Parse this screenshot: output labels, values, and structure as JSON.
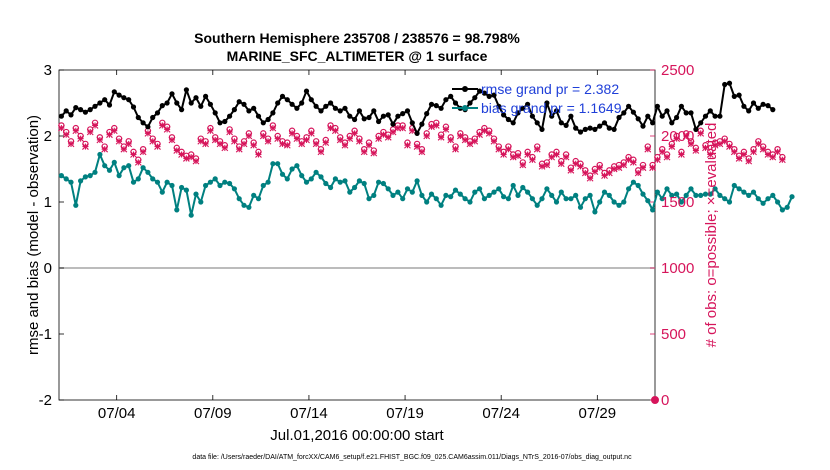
{
  "chart_data": {
    "type": "line",
    "title": "Southern Hemisphere 235708 / 238576 = 98.798%",
    "subtitle": "MARINE_SFC_ALTIMETER @ 1 surface",
    "xlabel": "Jul.01,2016 00:00:00 start",
    "ylabel_left": "rmse and bias (model - observation)",
    "ylabel_right": "# of obs: o=possible; ×=evaluated",
    "footer": "data file: /Users/raeder/DAI/ATM_forcXX/CAM6_setup/f.e21.FHIST_BGC.f09_025.CAM6assim.011/Diags_NTrS_2016-07/obs_diag_output.nc",
    "x_range_days": [
      1,
      32
    ],
    "ylim_left": [
      -2,
      3
    ],
    "ylim_right": [
      0,
      2500
    ],
    "x_ticks": [
      {
        "day": 4,
        "label": "07/04"
      },
      {
        "day": 9,
        "label": "07/09"
      },
      {
        "day": 14,
        "label": "07/14"
      },
      {
        "day": 19,
        "label": "07/19"
      },
      {
        "day": 24,
        "label": "07/24"
      },
      {
        "day": 29,
        "label": "07/29"
      }
    ],
    "y_ticks_left": [
      {
        "value": 3,
        "label": "3"
      },
      {
        "value": 2,
        "label": "2"
      },
      {
        "value": 1,
        "label": "1"
      },
      {
        "value": 0,
        "label": "0"
      },
      {
        "value": -1,
        "label": "-1"
      },
      {
        "value": -2,
        "label": "-2"
      }
    ],
    "y_ticks_right": [
      {
        "value": 2500,
        "label": "2500"
      },
      {
        "value": 2000,
        "label": "2000"
      },
      {
        "value": 1500,
        "label": "1500"
      },
      {
        "value": 1000,
        "label": "1000"
      },
      {
        "value": 500,
        "label": "500"
      },
      {
        "value": 0,
        "label": "0"
      }
    ],
    "zero_line": 0,
    "colors": {
      "rmse": "#000000",
      "bias": "#008080",
      "obs": "#d6155b",
      "zero": "#a6a6a6",
      "legend_text": "#1f3fd8"
    },
    "legend": [
      {
        "name": "rmse grand pr = 2.382",
        "color": "#000000"
      },
      {
        "name": "bias grand pr = 1.1649",
        "color": "#008080"
      }
    ],
    "series": [
      {
        "name": "rmse",
        "axis": "left",
        "x_start": 1.125,
        "x_step": 0.25,
        "values": [
          2.3,
          2.38,
          2.32,
          2.43,
          2.4,
          2.36,
          2.4,
          2.45,
          2.5,
          2.55,
          2.47,
          2.67,
          2.62,
          2.58,
          2.55,
          2.44,
          2.28,
          2.2,
          2.14,
          2.28,
          2.35,
          2.46,
          2.5,
          2.64,
          2.5,
          2.4,
          2.7,
          2.5,
          2.58,
          2.45,
          2.6,
          2.48,
          2.35,
          2.2,
          2.22,
          2.3,
          2.4,
          2.52,
          2.48,
          2.38,
          2.42,
          2.3,
          2.2,
          2.25,
          2.35,
          2.5,
          2.6,
          2.55,
          2.48,
          2.42,
          2.5,
          2.68,
          2.55,
          2.45,
          2.38,
          2.45,
          2.5,
          2.42,
          2.38,
          2.42,
          2.3,
          2.25,
          2.38,
          2.26,
          2.28,
          2.38,
          2.22,
          2.3,
          2.32,
          2.18,
          2.3,
          2.34,
          2.38,
          2.2,
          2.04,
          2.18,
          2.34,
          2.48,
          2.46,
          2.42,
          2.55,
          2.6,
          2.5,
          2.42,
          2.4,
          2.5,
          2.58,
          2.68,
          2.65,
          2.6,
          2.62,
          2.45,
          2.32,
          2.25,
          2.2,
          2.35,
          2.42,
          2.48,
          2.3,
          2.2,
          2.1,
          2.5,
          2.3,
          2.38,
          2.2,
          2.16,
          2.3,
          2.12,
          2.06,
          2.1,
          2.12,
          2.1,
          2.15,
          2.2,
          2.12,
          2.1,
          2.28,
          2.35,
          2.45,
          2.36,
          2.26,
          2.15,
          2.3,
          2.2,
          2.45,
          2.3,
          2.38,
          2.2,
          2.28,
          2.45,
          2.35,
          2.35,
          2.1,
          2.2,
          2.3,
          2.38,
          2.3,
          2.3,
          2.78,
          2.8,
          2.6,
          2.62,
          2.45,
          2.38,
          2.5,
          2.42,
          2.48,
          2.46,
          2.4
        ]
      },
      {
        "name": "bias",
        "axis": "left",
        "x_start": 1.125,
        "x_step": 0.25,
        "values": [
          1.4,
          1.35,
          1.3,
          0.95,
          1.32,
          1.38,
          1.4,
          1.45,
          1.72,
          1.55,
          1.48,
          1.6,
          1.4,
          1.52,
          1.55,
          1.3,
          1.35,
          1.52,
          1.45,
          1.35,
          1.3,
          1.15,
          1.3,
          1.25,
          0.88,
          1.22,
          1.18,
          0.8,
          1.12,
          1.0,
          1.25,
          1.3,
          1.35,
          1.25,
          1.3,
          1.28,
          1.2,
          1.05,
          0.95,
          0.92,
          1.1,
          1.05,
          1.25,
          1.3,
          1.58,
          1.58,
          1.42,
          1.35,
          1.5,
          1.55,
          1.4,
          1.3,
          1.35,
          1.45,
          1.38,
          1.28,
          1.22,
          1.35,
          1.3,
          1.32,
          1.15,
          1.22,
          1.32,
          1.28,
          1.05,
          1.1,
          1.3,
          1.28,
          1.2,
          1.1,
          1.15,
          1.05,
          1.2,
          1.15,
          1.32,
          1.1,
          1.0,
          1.12,
          1.05,
          0.95,
          1.1,
          1.08,
          1.18,
          1.12,
          1.05,
          1.0,
          1.15,
          1.2,
          1.05,
          1.1,
          1.15,
          1.2,
          1.08,
          1.05,
          1.25,
          1.1,
          1.22,
          1.15,
          1.05,
          0.95,
          1.05,
          1.2,
          1.1,
          1.0,
          1.15,
          1.05,
          1.05,
          1.1,
          0.92,
          1.05,
          1.1,
          0.85,
          1.0,
          1.15,
          1.1,
          1.0,
          0.95,
          1.0,
          1.2,
          1.3,
          1.25,
          1.12,
          1.02,
          0.88,
          1.15,
          1.05,
          1.2,
          1.1,
          1.12,
          1.0,
          1.1,
          1.2,
          1.1,
          1.1,
          1.12,
          1.12,
          1.2,
          1.1,
          1.05,
          1.0,
          1.25,
          1.2,
          1.15,
          1.1,
          1.15,
          1.05,
          0.98,
          1.05,
          1.1,
          1.0,
          0.88,
          0.92,
          1.08
        ]
      },
      {
        "name": "obs possible (o)",
        "axis": "right",
        "x_start": 1.125,
        "x_step": 0.25,
        "values": [
          2080,
          2030,
          1960,
          2060,
          2000,
          1940,
          2050,
          2100,
          1990,
          1920,
          2030,
          2060,
          1980,
          1920,
          1960,
          1880,
          1820,
          1900,
          2040,
          1980,
          1940,
          2100,
          2070,
          1990,
          1910,
          1880,
          1850,
          1860,
          1830,
          1980,
          1960,
          2060,
          1990,
          1960,
          1930,
          2050,
          1980,
          1920,
          1960,
          2020,
          1950,
          1880,
          2020,
          1980,
          2080,
          2000,
          1960,
          1950,
          2040,
          2000,
          1960,
          1990,
          2040,
          1960,
          1900,
          1970,
          2080,
          2060,
          1990,
          1950,
          2000,
          2040,
          1980,
          1900,
          1950,
          1890,
          2000,
          2030,
          2010,
          2050,
          2080,
          2080,
          1950,
          2060,
          1940,
          1900,
          2020,
          2090,
          2100,
          2010,
          2070,
          1990,
          1920,
          2020,
          1990,
          1960,
          1980,
          2030,
          2060,
          2040,
          1980,
          1920,
          1880,
          1920,
          1860,
          1870,
          1800,
          1880,
          1840,
          1920,
          1790,
          1800,
          1860,
          1880,
          1810,
          1860,
          1760,
          1810,
          1790,
          1740,
          1700,
          1750,
          1780,
          1720,
          1740,
          1770,
          1780,
          1800,
          1840,
          1820,
          1740,
          1780,
          1920,
          1780,
          1840,
          1900,
          1860,
          1940,
          2000,
          1880,
          2020,
          1960,
          1910,
          2040,
          1930,
          1880,
          1950,
          1960,
          1980,
          1940,
          1900,
          1850,
          1880,
          1830,
          1900,
          1960,
          1920,
          1880,
          1860,
          1900,
          1840
        ]
      },
      {
        "name": "obs evaluated (x)",
        "axis": "right",
        "x_start": 1.125,
        "x_step": 0.25,
        "values": [
          2060,
          2010,
          1940,
          2040,
          1980,
          1920,
          2030,
          2080,
          1970,
          1900,
          2010,
          2040,
          1960,
          1900,
          1940,
          1860,
          1800,
          1880,
          2020,
          1960,
          1920,
          2080,
          2050,
          1970,
          1890,
          1860,
          1830,
          1840,
          1810,
          1960,
          1940,
          2040,
          1970,
          1940,
          1910,
          2030,
          1960,
          1900,
          1940,
          2000,
          1930,
          1860,
          2000,
          1960,
          2060,
          1980,
          1940,
          1930,
          2020,
          1980,
          1940,
          1970,
          2020,
          1940,
          1880,
          1950,
          2060,
          2040,
          1970,
          1930,
          1980,
          2020,
          1960,
          1880,
          1930,
          1870,
          1980,
          2010,
          1990,
          2030,
          2060,
          2060,
          1930,
          2040,
          1920,
          1880,
          2000,
          2070,
          2080,
          1990,
          2050,
          1970,
          1900,
          2000,
          1970,
          1940,
          1960,
          2010,
          2040,
          2020,
          1960,
          1900,
          1860,
          1900,
          1840,
          1850,
          1780,
          1860,
          1820,
          1900,
          1770,
          1780,
          1840,
          1860,
          1790,
          1840,
          1740,
          1790,
          1770,
          1720,
          1680,
          1730,
          1760,
          1700,
          1720,
          1750,
          1760,
          1780,
          1820,
          1800,
          1720,
          1760,
          1900,
          1760,
          1820,
          1880,
          1840,
          1920,
          1980,
          1860,
          2000,
          1940,
          1890,
          2020,
          1910,
          1860,
          1930,
          1940,
          1960,
          1920,
          1880,
          1830,
          1860,
          1810,
          1880,
          1940,
          1900,
          1860,
          1840,
          1880,
          1820
        ]
      }
    ],
    "extra_marker": {
      "name": "end-of-period count",
      "axis": "right",
      "day": 32,
      "value": 0
    }
  }
}
